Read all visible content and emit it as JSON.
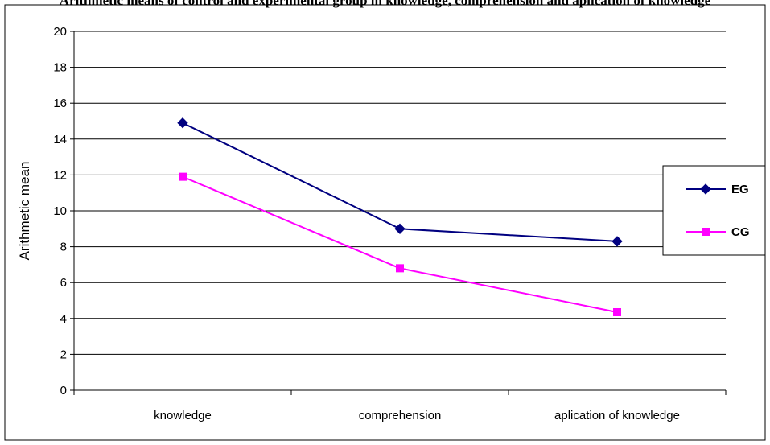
{
  "header": {
    "partial_title": "Arithmetic means of control and experimental group in knowledge, comprehension and aplication of knowledge"
  },
  "chart_data": {
    "type": "line",
    "categories": [
      "knowledge",
      "comprehension",
      "aplication of knowledge"
    ],
    "series": [
      {
        "name": "EG",
        "values": [
          14.9,
          9.0,
          8.3
        ],
        "color": "#000080",
        "marker": "diamond"
      },
      {
        "name": "CG",
        "values": [
          11.9,
          6.8,
          4.35
        ],
        "color": "#FF00FF",
        "marker": "square"
      }
    ],
    "title": "",
    "xlabel": "",
    "ylabel": "Arithmetic mean",
    "ylim": [
      0,
      20
    ],
    "yticks": [
      "0",
      "2",
      "4",
      "6",
      "8",
      "10",
      "12",
      "14",
      "16",
      "18",
      "20"
    ],
    "grid": "horizontal",
    "legend_position": "right"
  }
}
